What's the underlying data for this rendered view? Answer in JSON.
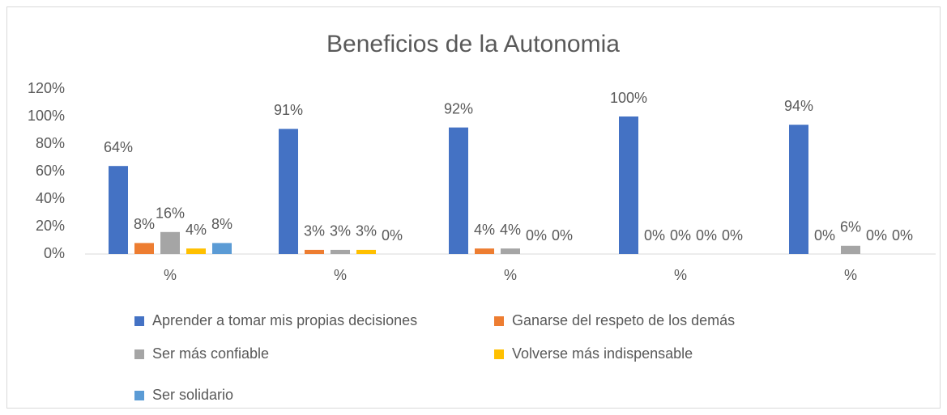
{
  "chart_data": {
    "type": "bar",
    "title": "Beneficios de la Autonomia",
    "categories": [
      "%",
      "%",
      "%",
      "%",
      "%"
    ],
    "series": [
      {
        "name": "Aprender a tomar mis propias decisiones",
        "color": "#4472c4",
        "values": [
          64,
          91,
          92,
          100,
          94
        ],
        "value_labels": [
          "64%",
          "91%",
          "92%",
          "100%",
          "94%"
        ]
      },
      {
        "name": "Ganarse del respeto de los demás",
        "color": "#ed7d31",
        "values": [
          8,
          3,
          4,
          0,
          0
        ],
        "value_labels": [
          "8%",
          "3%",
          "4%",
          "0%",
          "0%"
        ]
      },
      {
        "name": "Ser más confiable",
        "color": "#a5a5a5",
        "values": [
          16,
          3,
          4,
          0,
          6
        ],
        "value_labels": [
          "16%",
          "3%",
          "4%",
          "0%",
          "6%"
        ]
      },
      {
        "name": "Volverse más indispensable",
        "color": "#ffc000",
        "values": [
          4,
          3,
          0,
          0,
          0
        ],
        "value_labels": [
          "4%",
          "3%",
          "0%",
          "0%",
          "0%"
        ]
      },
      {
        "name": "Ser solidario",
        "color": "#5b9bd5",
        "values": [
          8,
          0,
          0,
          0,
          0
        ],
        "value_labels": [
          "8%",
          "0%",
          "0%",
          "0%",
          "0%"
        ]
      }
    ],
    "ylim": [
      0,
      120
    ],
    "yticks": [
      {
        "value": 0,
        "label": "0%"
      },
      {
        "value": 20,
        "label": "20%"
      },
      {
        "value": 40,
        "label": "40%"
      },
      {
        "value": 60,
        "label": "60%"
      },
      {
        "value": 80,
        "label": "80%"
      },
      {
        "value": 100,
        "label": "100%"
      },
      {
        "value": 120,
        "label": "120%"
      }
    ],
    "grid": false,
    "legend": "bottom"
  }
}
